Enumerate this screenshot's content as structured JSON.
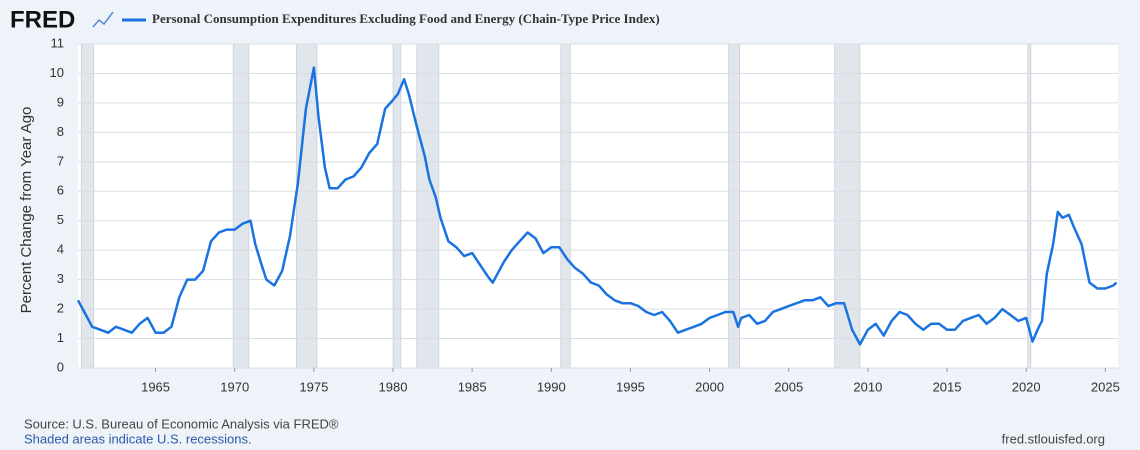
{
  "brand": "FRED",
  "chart_data": {
    "type": "line",
    "y_label": "Percent Change from Year Ago",
    "xlim": [
      1960.1,
      2025.8
    ],
    "xticks": [
      1965,
      1970,
      1975,
      1980,
      1985,
      1990,
      1995,
      2000,
      2005,
      2010,
      2015,
      2020,
      2025
    ],
    "ylim": [
      0,
      11
    ],
    "yticks": [
      0,
      1,
      2,
      3,
      4,
      5,
      6,
      7,
      8,
      9,
      10,
      11
    ],
    "grid": true,
    "recessions": [
      [
        1960.3,
        1961.1
      ],
      [
        1969.9,
        1970.9
      ],
      [
        1973.9,
        1975.2
      ],
      [
        1980.0,
        1980.5
      ],
      [
        1981.5,
        1982.9
      ],
      [
        1990.6,
        1991.2
      ],
      [
        2001.2,
        2001.9
      ],
      [
        2007.9,
        2009.5
      ],
      [
        2020.1,
        2020.3
      ]
    ],
    "recession_color": "#e1e6ec",
    "x": [
      1960.1,
      1960.5,
      1961,
      1961.5,
      1962,
      1962.5,
      1963,
      1963.5,
      1964,
      1964.5,
      1965,
      1965.5,
      1966,
      1966.5,
      1967,
      1967.5,
      1968,
      1968.5,
      1969,
      1969.5,
      1970,
      1970.5,
      1971,
      1971.3,
      1971.7,
      1972,
      1972.5,
      1973,
      1973.5,
      1974,
      1974.5,
      1975,
      1975.3,
      1975.7,
      1976,
      1976.5,
      1977,
      1977.5,
      1978,
      1978.5,
      1979,
      1979.5,
      1980,
      1980.3,
      1980.7,
      1981,
      1981.5,
      1982,
      1982.3,
      1982.7,
      1983,
      1983.5,
      1984,
      1984.5,
      1985,
      1985.5,
      1986,
      1986.3,
      1986.7,
      1987,
      1987.5,
      1988,
      1988.5,
      1989,
      1989.5,
      1990,
      1990.5,
      1991,
      1991.5,
      1992,
      1992.5,
      1993,
      1993.5,
      1994,
      1994.5,
      1995,
      1995.5,
      1996,
      1996.5,
      1997,
      1997.5,
      1998,
      1998.5,
      1999,
      1999.5,
      2000,
      2000.5,
      2001,
      2001.5,
      2001.8,
      2002,
      2002.5,
      2003,
      2003.5,
      2004,
      2004.5,
      2005,
      2005.5,
      2006,
      2006.5,
      2007,
      2007.5,
      2008,
      2008.5,
      2009,
      2009.5,
      2010,
      2010.5,
      2011,
      2011.5,
      2012,
      2012.5,
      2013,
      2013.5,
      2014,
      2014.5,
      2015,
      2015.5,
      2016,
      2016.5,
      2017,
      2017.5,
      2018,
      2018.5,
      2019,
      2019.5,
      2020,
      2020.4,
      2020.8,
      2021,
      2021.3,
      2021.7,
      2022,
      2022.3,
      2022.7,
      2023,
      2023.5,
      2024,
      2024.5,
      2025,
      2025.5,
      2025.7
    ],
    "series": [
      {
        "name": "Personal Consumption Expenditures Excluding Food and Energy (Chain-Type Price Index)",
        "color": "#1a73e0",
        "values": [
          2.3,
          1.9,
          1.4,
          1.3,
          1.2,
          1.4,
          1.3,
          1.2,
          1.5,
          1.7,
          1.2,
          1.2,
          1.4,
          2.4,
          3.0,
          3.0,
          3.3,
          4.3,
          4.6,
          4.7,
          4.7,
          4.9,
          5.0,
          4.2,
          3.5,
          3.0,
          2.8,
          3.3,
          4.5,
          6.3,
          8.8,
          10.2,
          8.5,
          6.8,
          6.1,
          6.1,
          6.4,
          6.5,
          6.8,
          7.3,
          7.6,
          8.8,
          9.1,
          9.3,
          9.8,
          9.3,
          8.2,
          7.2,
          6.4,
          5.8,
          5.1,
          4.3,
          4.1,
          3.8,
          3.9,
          3.5,
          3.1,
          2.9,
          3.3,
          3.6,
          4.0,
          4.3,
          4.6,
          4.4,
          3.9,
          4.1,
          4.1,
          3.7,
          3.4,
          3.2,
          2.9,
          2.8,
          2.5,
          2.3,
          2.2,
          2.2,
          2.1,
          1.9,
          1.8,
          1.9,
          1.6,
          1.2,
          1.3,
          1.4,
          1.5,
          1.7,
          1.8,
          1.9,
          1.9,
          1.4,
          1.7,
          1.8,
          1.5,
          1.6,
          1.9,
          2.0,
          2.1,
          2.2,
          2.3,
          2.3,
          2.4,
          2.1,
          2.2,
          2.2,
          1.3,
          0.8,
          1.3,
          1.5,
          1.1,
          1.6,
          1.9,
          1.8,
          1.5,
          1.3,
          1.5,
          1.5,
          1.3,
          1.3,
          1.6,
          1.7,
          1.8,
          1.5,
          1.7,
          2.0,
          1.8,
          1.6,
          1.7,
          0.9,
          1.4,
          1.6,
          3.2,
          4.2,
          5.3,
          5.1,
          5.2,
          4.8,
          4.2,
          2.9,
          2.7,
          2.7,
          2.8,
          2.9
        ]
      }
    ]
  },
  "footer": {
    "source": "Source: U.S. Bureau of Economic Analysis via FRED®",
    "note": "Shaded areas indicate U.S. recessions.",
    "url": "fred.stlouisfed.org"
  }
}
